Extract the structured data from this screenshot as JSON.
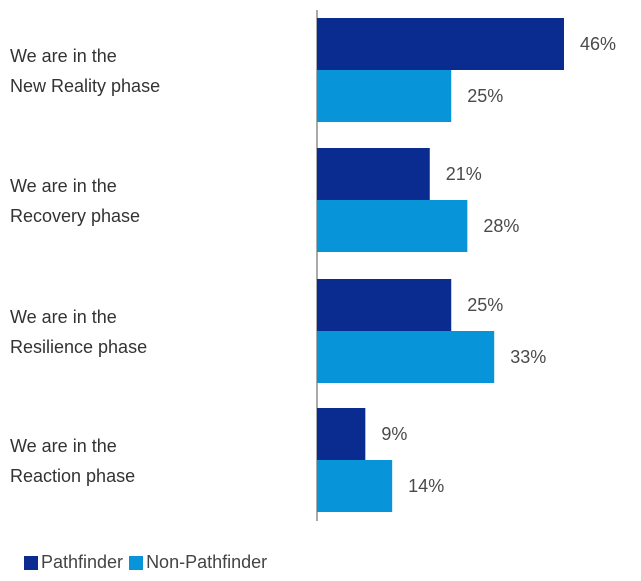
{
  "chart_data": {
    "type": "bar",
    "orientation": "horizontal",
    "categories": [
      [
        "We are in the",
        "New Reality phase"
      ],
      [
        "We are in the",
        "Recovery phase"
      ],
      [
        "We are in the",
        "Resilience phase"
      ],
      [
        "We are in the",
        "Reaction phase"
      ]
    ],
    "series": [
      {
        "name": "Pathfinder",
        "color": "#0a2b8f",
        "values": [
          46,
          21,
          25,
          9
        ],
        "labels": [
          "46%",
          "21%",
          "25%",
          "9%"
        ]
      },
      {
        "name": "Non-Pathfinder",
        "color": "#0894d8",
        "values": [
          25,
          28,
          33,
          14
        ],
        "labels": [
          "25%",
          "28%",
          "33%",
          "14%"
        ]
      }
    ],
    "unit": "%",
    "xlim": [
      0,
      46
    ],
    "legend_position": "bottom-left",
    "grid": false
  }
}
